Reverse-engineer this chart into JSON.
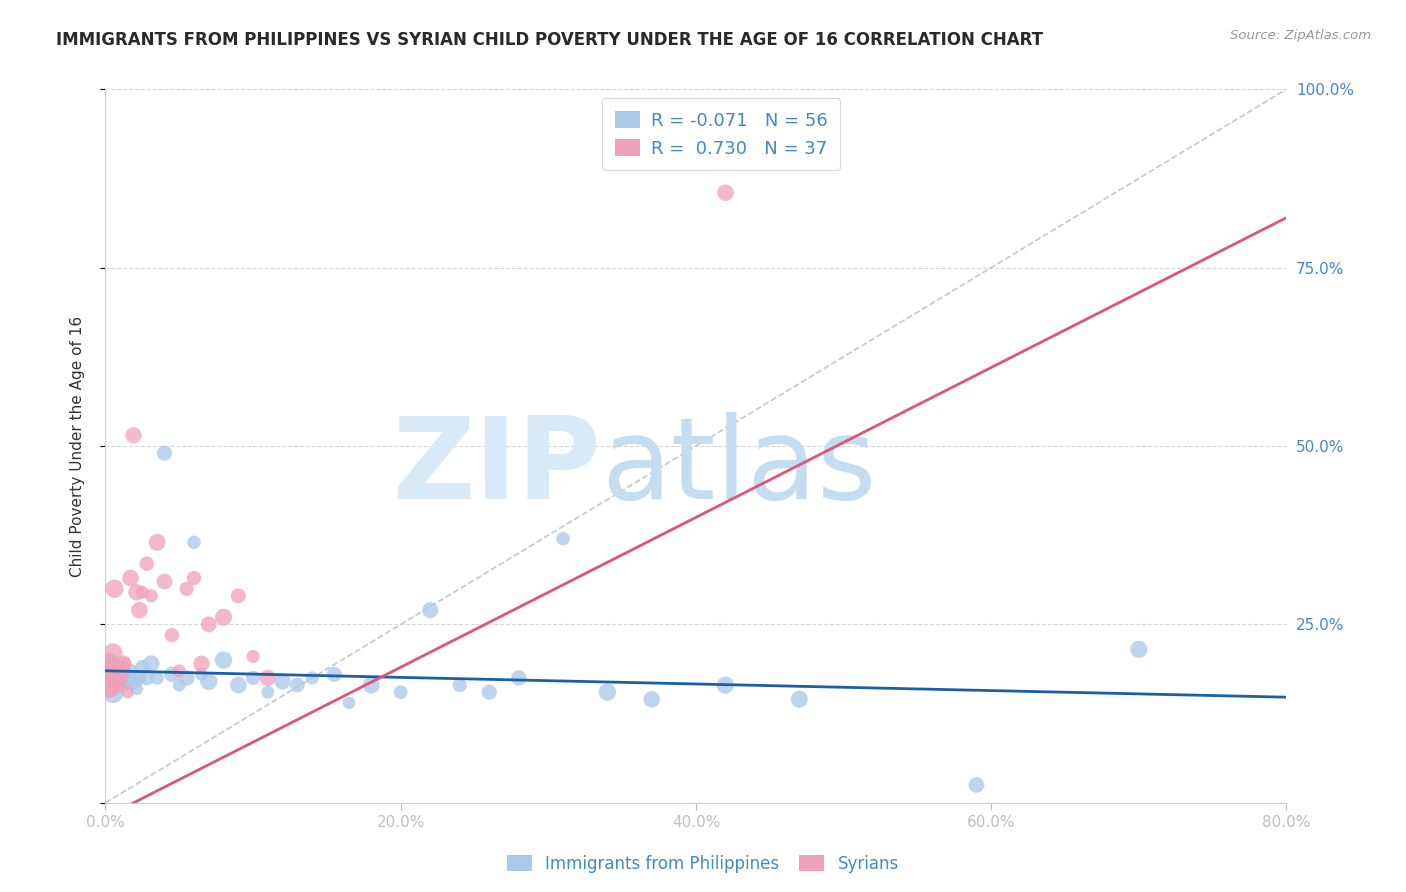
{
  "title": "IMMIGRANTS FROM PHILIPPINES VS SYRIAN CHILD POVERTY UNDER THE AGE OF 16 CORRELATION CHART",
  "source": "Source: ZipAtlas.com",
  "ylabel": "Child Poverty Under the Age of 16",
  "xlim": [
    0.0,
    0.8
  ],
  "ylim": [
    0.0,
    1.0
  ],
  "xticks": [
    0.0,
    0.2,
    0.4,
    0.6,
    0.8
  ],
  "yticks": [
    0.0,
    0.25,
    0.5,
    0.75,
    1.0
  ],
  "blue_color": "#aac8e8",
  "pink_color": "#f0a0b8",
  "blue_line_color": "#1a5fac",
  "pink_line_color": "#e05575",
  "axis_color": "#4488cc",
  "grid_color": "#d8d8d8",
  "R_blue": -0.071,
  "N_blue": 56,
  "R_pink": 0.73,
  "N_pink": 37,
  "blue_x": [
    0.001,
    0.002,
    0.002,
    0.003,
    0.003,
    0.004,
    0.004,
    0.005,
    0.005,
    0.006,
    0.006,
    0.007,
    0.008,
    0.009,
    0.01,
    0.011,
    0.012,
    0.013,
    0.015,
    0.017,
    0.019,
    0.021,
    0.023,
    0.025,
    0.028,
    0.031,
    0.035,
    0.04,
    0.045,
    0.05,
    0.055,
    0.06,
    0.065,
    0.07,
    0.08,
    0.09,
    0.1,
    0.11,
    0.12,
    0.13,
    0.14,
    0.155,
    0.165,
    0.18,
    0.2,
    0.22,
    0.24,
    0.26,
    0.28,
    0.31,
    0.34,
    0.37,
    0.42,
    0.47,
    0.59,
    0.7
  ],
  "blue_y": [
    0.185,
    0.195,
    0.175,
    0.165,
    0.18,
    0.17,
    0.19,
    0.16,
    0.155,
    0.175,
    0.185,
    0.17,
    0.165,
    0.18,
    0.175,
    0.19,
    0.165,
    0.18,
    0.17,
    0.185,
    0.17,
    0.16,
    0.175,
    0.19,
    0.175,
    0.195,
    0.175,
    0.49,
    0.18,
    0.165,
    0.175,
    0.365,
    0.18,
    0.17,
    0.2,
    0.165,
    0.175,
    0.155,
    0.17,
    0.165,
    0.175,
    0.18,
    0.14,
    0.165,
    0.155,
    0.27,
    0.165,
    0.155,
    0.175,
    0.37,
    0.155,
    0.145,
    0.165,
    0.145,
    0.025,
    0.215
  ],
  "pink_x": [
    0.001,
    0.001,
    0.002,
    0.002,
    0.003,
    0.004,
    0.005,
    0.005,
    0.006,
    0.007,
    0.008,
    0.009,
    0.01,
    0.011,
    0.012,
    0.013,
    0.015,
    0.017,
    0.019,
    0.021,
    0.023,
    0.025,
    0.028,
    0.031,
    0.035,
    0.04,
    0.045,
    0.05,
    0.055,
    0.06,
    0.065,
    0.07,
    0.08,
    0.09,
    0.1,
    0.11,
    0.42
  ],
  "pink_y": [
    0.175,
    0.185,
    0.16,
    0.195,
    0.165,
    0.185,
    0.175,
    0.21,
    0.3,
    0.175,
    0.165,
    0.185,
    0.175,
    0.185,
    0.195,
    0.195,
    0.155,
    0.315,
    0.515,
    0.295,
    0.27,
    0.295,
    0.335,
    0.29,
    0.365,
    0.31,
    0.235,
    0.185,
    0.3,
    0.315,
    0.195,
    0.25,
    0.26,
    0.29,
    0.205,
    0.175,
    0.855
  ],
  "blue_line_x": [
    0.0,
    0.8
  ],
  "blue_line_y": [
    0.185,
    0.148
  ],
  "pink_line_x": [
    0.0,
    0.8
  ],
  "pink_line_y": [
    -0.02,
    0.82
  ]
}
